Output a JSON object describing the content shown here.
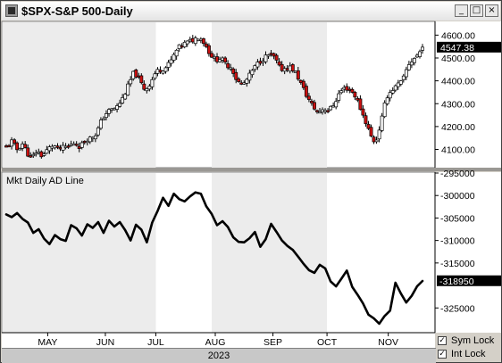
{
  "window": {
    "title": "$SPX-S&P 500-Daily",
    "buttons": {
      "minimize": "_",
      "maximize": "□",
      "close": "×"
    }
  },
  "chart_data": [
    {
      "type": "candlestick",
      "title": "$SPX-S&P 500-Daily",
      "ylim": [
        4020,
        4660
      ],
      "y_ticks": [
        "4600.00",
        "4500.00",
        "4400.00",
        "4300.00",
        "4200.00",
        "4100.00"
      ],
      "y_tick_values": [
        4600,
        4500,
        4400,
        4300,
        4200,
        4100
      ],
      "last_value_label": "4547.38",
      "last_value": 4547.38,
      "x_ticks": [
        "MAY",
        "JUN",
        "JUL",
        "AUG",
        "SEP",
        "OCT",
        "NOV"
      ],
      "x_tick_days": [
        23,
        55,
        83,
        116,
        148,
        178,
        212
      ],
      "year_label": "2023",
      "x_range_days": [
        0,
        231
      ],
      "shaded_regions_days": [
        [
          0,
          83
        ],
        [
          116,
          178
        ]
      ],
      "close_path": [
        [
          0,
          4110
        ],
        [
          3,
          4135
        ],
        [
          6,
          4100
        ],
        [
          9,
          4125
        ],
        [
          12,
          4080
        ],
        [
          14,
          4060
        ],
        [
          17,
          4095
        ],
        [
          20,
          4070
        ],
        [
          23,
          4100
        ],
        [
          26,
          4120
        ],
        [
          29,
          4100
        ],
        [
          32,
          4108
        ],
        [
          35,
          4115
        ],
        [
          38,
          4130
        ],
        [
          41,
          4110
        ],
        [
          44,
          4145
        ],
        [
          47,
          4150
        ],
        [
          50,
          4170
        ],
        [
          53,
          4230
        ],
        [
          56,
          4265
        ],
        [
          59,
          4275
        ],
        [
          62,
          4290
        ],
        [
          65,
          4330
        ],
        [
          68,
          4385
        ],
        [
          71,
          4440
        ],
        [
          74,
          4400
        ],
        [
          77,
          4360
        ],
        [
          80,
          4390
        ],
        [
          83,
          4440
        ],
        [
          86,
          4450
        ],
        [
          89,
          4460
        ],
        [
          92,
          4495
        ],
        [
          95,
          4540
        ],
        [
          98,
          4560
        ],
        [
          101,
          4570
        ],
        [
          104,
          4580
        ],
        [
          107,
          4595
        ],
        [
          110,
          4565
        ],
        [
          113,
          4520
        ],
        [
          116,
          4490
        ],
        [
          119,
          4500
        ],
        [
          122,
          4470
        ],
        [
          125,
          4460
        ],
        [
          128,
          4400
        ],
        [
          131,
          4380
        ],
        [
          134,
          4410
        ],
        [
          137,
          4450
        ],
        [
          140,
          4480
        ],
        [
          143,
          4500
        ],
        [
          146,
          4515
        ],
        [
          149,
          4500
        ],
        [
          152,
          4450
        ],
        [
          155,
          4455
        ],
        [
          158,
          4460
        ],
        [
          161,
          4430
        ],
        [
          164,
          4380
        ],
        [
          167,
          4330
        ],
        [
          170,
          4290
        ],
        [
          173,
          4260
        ],
        [
          176,
          4280
        ],
        [
          179,
          4270
        ],
        [
          182,
          4300
        ],
        [
          185,
          4350
        ],
        [
          188,
          4370
        ],
        [
          191,
          4360
        ],
        [
          194,
          4330
        ],
        [
          197,
          4270
        ],
        [
          200,
          4210
        ],
        [
          203,
          4145
        ],
        [
          205,
          4130
        ],
        [
          208,
          4220
        ],
        [
          211,
          4330
        ],
        [
          214,
          4360
        ],
        [
          217,
          4380
        ],
        [
          220,
          4400
        ],
        [
          223,
          4470
        ],
        [
          226,
          4495
        ],
        [
          229,
          4520
        ],
        [
          231,
          4547
        ]
      ]
    },
    {
      "type": "line",
      "title": "Mkt Daily AD Line",
      "ylim": [
        -330500,
        -294800
      ],
      "y_ticks": [
        "-295000",
        "-300000",
        "-305000",
        "-310000",
        "-315000",
        "-325000"
      ],
      "y_tick_values": [
        -295000,
        -300000,
        -305000,
        -310000,
        -315000,
        -325000
      ],
      "last_value_label": "-318950",
      "last_value": -318950,
      "series": [
        {
          "x_days": [
            0,
            3,
            6,
            9,
            12,
            15,
            18,
            21,
            24,
            27,
            30,
            33,
            36,
            39,
            42,
            45,
            48,
            51,
            54,
            57,
            60,
            63,
            66,
            69,
            72,
            75,
            78,
            81,
            84,
            87,
            90,
            93,
            96,
            99,
            102,
            105,
            108,
            111,
            114,
            117,
            120,
            123,
            126,
            129,
            132,
            135,
            138,
            141,
            144,
            147,
            150,
            153,
            156,
            159,
            162,
            165,
            168,
            171,
            174,
            177,
            180,
            183,
            186,
            189,
            192,
            195,
            198,
            201,
            204,
            207,
            210,
            213,
            216,
            219,
            222,
            225,
            228,
            231
          ],
          "values": [
            -304200,
            -304800,
            -303900,
            -305200,
            -306000,
            -308300,
            -307500,
            -309600,
            -310800,
            -308800,
            -309700,
            -310100,
            -306600,
            -307300,
            -308900,
            -306400,
            -307200,
            -305900,
            -308300,
            -305600,
            -306900,
            -305900,
            -307700,
            -310000,
            -306500,
            -307600,
            -310400,
            -306000,
            -303400,
            -300500,
            -302300,
            -299600,
            -300800,
            -301300,
            -300200,
            -299300,
            -299600,
            -302400,
            -304100,
            -306600,
            -305700,
            -307000,
            -309300,
            -310300,
            -310400,
            -309500,
            -308100,
            -311400,
            -309700,
            -306300,
            -308100,
            -310000,
            -311200,
            -312100,
            -313600,
            -315200,
            -316600,
            -317200,
            -315400,
            -316200,
            -319100,
            -320200,
            -318500,
            -316700,
            -320300,
            -322100,
            -324000,
            -326500,
            -327300,
            -328500,
            -326800,
            -325600,
            -319400,
            -321800,
            -323800,
            -322300,
            -320200,
            -319000
          ]
        }
      ]
    }
  ],
  "bottom_bar": {
    "year": "2023"
  },
  "controls": {
    "sym_lock_label": "Sym Lock",
    "sym_lock_checked": true,
    "int_lock_label": "Int Lock",
    "int_lock_checked": true
  }
}
